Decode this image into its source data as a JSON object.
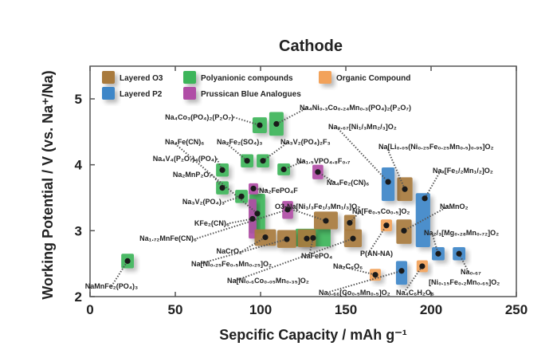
{
  "chart_data": {
    "type": "scatter",
    "title": "Cathode",
    "xlabel": "Sepcific Capacity / mAh g⁻¹",
    "ylabel": "Working Potential / V (vs. Na⁺/Na)",
    "xlim": [
      0,
      250
    ],
    "ylim": [
      2,
      5.5
    ],
    "xticks": [
      "0",
      "50",
      "100",
      "150",
      "200",
      "250"
    ],
    "yticks": [
      "2",
      "3",
      "4",
      "5"
    ],
    "grid": false,
    "legend_position": "top-left",
    "categories": [
      {
        "key": "o3",
        "name": "Layered O3",
        "color": "#a87a3c"
      },
      {
        "key": "poly",
        "name": "Polyanionic compounds",
        "color": "#3cb55a"
      },
      {
        "key": "org",
        "name": "Organic Compound",
        "color": "#f2a25a"
      },
      {
        "key": "p2",
        "name": "Layered P2",
        "color": "#3d86c8"
      },
      {
        "key": "pba",
        "name": "Prussican Blue Analogues",
        "color": "#b04ea6"
      }
    ],
    "points": [
      {
        "label": "NaMnFe₂(PO₄)₃",
        "cat": "poly",
        "x": 22,
        "y": 2.54,
        "xr": [
          18.3,
          25.7
        ],
        "yr": [
          2.43,
          2.65
        ]
      },
      {
        "label": "Na₄Co₃(PO₄)₂(P₂O₇)",
        "cat": "poly",
        "x": 99.5,
        "y": 4.6,
        "xr": [
          95.3,
          103.7
        ],
        "yr": [
          4.48,
          4.72
        ]
      },
      {
        "label": "Na₄Ni₀.₃Co₀.₂₄Mn₀.₃(PO₄)₂(P₂O₇)",
        "cat": "poly",
        "x": 109.3,
        "y": 4.62,
        "xr": [
          105.1,
          113.5
        ],
        "yr": [
          4.44,
          4.8
        ]
      },
      {
        "label": "Na₂Fe₂(SO₄)₃",
        "cat": "poly",
        "x": 92.1,
        "y": 4.06,
        "xr": [
          88.4,
          95.8
        ],
        "yr": [
          3.96,
          4.16
        ]
      },
      {
        "label": "Na₃V₂(PO₄)₂F₃",
        "cat": "poly",
        "x": 101.4,
        "y": 4.06,
        "xr": [
          97.7,
          105.1
        ],
        "yr": [
          3.96,
          4.16
        ]
      },
      {
        "label": "Na₁.₅VPO₄.₈F₀.₇",
        "cat": "poly",
        "x": 113.6,
        "y": 3.93,
        "xr": [
          109.9,
          117.3
        ],
        "yr": [
          3.84,
          4.02
        ]
      },
      {
        "label": "Na₄V₄(P₂O₇)₄(PO₄)",
        "cat": "poly",
        "x": 77.6,
        "y": 3.92,
        "xr": [
          73.9,
          81.3
        ],
        "yr": [
          3.82,
          4.02
        ]
      },
      {
        "label": "Na₂MnP₂O₇",
        "cat": "poly",
        "x": 77.6,
        "y": 3.65,
        "xr": [
          73.9,
          81.3
        ],
        "yr": [
          3.55,
          3.75
        ]
      },
      {
        "label": "Na₃V₂(PO₄)₃",
        "cat": "poly",
        "x": 88.8,
        "y": 3.52,
        "xr": [
          85.1,
          92.5
        ],
        "yr": [
          3.42,
          3.62
        ]
      },
      {
        "label": "Na₄Fe(CN)₆",
        "cat": "poly",
        "x": 98.1,
        "y": 3.26,
        "xr": [
          93.5,
          102.7
        ],
        "yr": [
          2.96,
          3.56
        ]
      },
      {
        "label": "NaFePO₄",
        "cat": "poly",
        "x": 130.8,
        "y": 2.89,
        "xr": [
          120.5,
          141.1
        ],
        "yr": [
          2.76,
          3.03
        ]
      },
      {
        "label": "Na₂FePO₄F",
        "cat": "pba",
        "x": 95.8,
        "y": 3.64,
        "xr": [
          93,
          98.6
        ],
        "yr": [
          3.55,
          3.72
        ]
      },
      {
        "label": "KFe₂(CN)₆",
        "cat": "pba",
        "x": 95.3,
        "y": 3.18,
        "xr": [
          93,
          97.6
        ],
        "yr": [
          2.88,
          3.48
        ]
      },
      {
        "label": "Na₁.₇₂MnFe(CN)₆",
        "cat": "pba",
        "x": 115.9,
        "y": 3.32,
        "xr": [
          112.7,
          119.1
        ],
        "yr": [
          3.18,
          3.45
        ]
      },
      {
        "label": "Na₄Fe₂(CN)₆",
        "cat": "pba",
        "x": 133.6,
        "y": 3.89,
        "xr": [
          130.4,
          136.8
        ],
        "yr": [
          3.78,
          4.0
        ]
      },
      {
        "label": "NaCrO₂",
        "cat": "o3",
        "x": 102.8,
        "y": 2.9,
        "xr": [
          96.5,
          109.1
        ],
        "yr": [
          2.77,
          3.02
        ]
      },
      {
        "label": "Na[Ni₀.₂₅Fe₀.₅Mn₀.₂₅]O₂",
        "cat": "o3",
        "x": 115.4,
        "y": 2.87,
        "xr": [
          109.8,
          121
        ],
        "yr": [
          2.74,
          3.01
        ]
      },
      {
        "label": "",
        "cat": "o3",
        "x": 127.1,
        "y": 2.88,
        "xr": [
          121.8,
          132.4
        ],
        "yr": [
          2.75,
          3.02
        ]
      },
      {
        "label": "O3-Na[Ni₁/₃Fe₁/₃Mn₁/₃]O₂",
        "cat": "o3",
        "x": 138.3,
        "y": 3.15,
        "xr": [
          131.3,
          145.3
        ],
        "yr": [
          3.02,
          3.29
        ]
      },
      {
        "label": "Na[Fe₀.₅Co₀.₅]O₂",
        "cat": "o3",
        "x": 152.3,
        "y": 3.12,
        "xr": [
          149,
          155.6
        ],
        "yr": [
          3.0,
          3.24
        ]
      },
      {
        "label": "Na[Ni₀.₆Co₀.₀₅Mn₀.₃₅]O₂",
        "cat": "o3",
        "x": 154.2,
        "y": 2.88,
        "xr": [
          149,
          159.4
        ],
        "yr": [
          2.75,
          3.02
        ]
      },
      {
        "label": "NaMnO₂",
        "cat": "o3",
        "x": 184.1,
        "y": 3.0,
        "xr": [
          179.6,
          188.6
        ],
        "yr": [
          2.8,
          3.17
        ]
      },
      {
        "label": "Na[Li₀.₀₅(Ni₀.₂₅Fe₀.₂₅Mn₀.₅)₀.₉₅]O₂",
        "cat": "o3",
        "x": 184.6,
        "y": 3.63,
        "xr": [
          180.1,
          189.1
        ],
        "yr": [
          3.45,
          3.81
        ]
      },
      {
        "label": "Na₀.₆₇[Ni₁/₃Mn₂/₃]O₂",
        "cat": "p2",
        "x": 174.8,
        "y": 3.74,
        "xr": [
          171,
          178.6
        ],
        "yr": [
          3.45,
          3.96
        ]
      },
      {
        "label": "Naₓ[Fe₁/₂Mn₁/₂]O₂",
        "cat": "p2",
        "x": 196.3,
        "y": 3.49,
        "xr": [
          191,
          199.5
        ],
        "yr": [
          2.75,
          3.57
        ]
      },
      {
        "label": "Na₂/₃[Mg₀.₂₈Mn₀.₇₂]O₂",
        "cat": "p2",
        "x": 204.2,
        "y": 2.65,
        "xr": [
          200.5,
          207.9
        ],
        "yr": [
          2.55,
          2.75
        ]
      },
      {
        "label": "Na₀.₆₇ [Ni₀.₁₅Fe₀.₂Mn₀.₆₅]O₂",
        "cat": "p2",
        "x": 216.4,
        "y": 2.65,
        "xr": [
          212.7,
          220.1
        ],
        "yr": [
          2.55,
          2.75
        ]
      },
      {
        "label": "Na₀.₆₆[Co₀.₅Mn₀.₅]O₂",
        "cat": "p2",
        "x": 182.7,
        "y": 2.39,
        "xr": [
          179.4,
          186
        ],
        "yr": [
          2.18,
          2.54
        ]
      },
      {
        "label": "P(AN-NA)",
        "cat": "org",
        "x": 173.8,
        "y": 3.08,
        "xr": [
          170.5,
          177.1
        ],
        "yr": [
          2.99,
          3.17
        ]
      },
      {
        "label": "Na₂C₆O₆",
        "cat": "org",
        "x": 167.3,
        "y": 2.33,
        "xr": [
          164,
          170.6
        ],
        "yr": [
          2.24,
          2.42
        ]
      },
      {
        "label": "Na₄C₆H₂O₆",
        "cat": "org",
        "x": 194.8,
        "y": 2.46,
        "xr": [
          191.5,
          198.1
        ],
        "yr": [
          2.37,
          2.55
        ]
      }
    ]
  }
}
